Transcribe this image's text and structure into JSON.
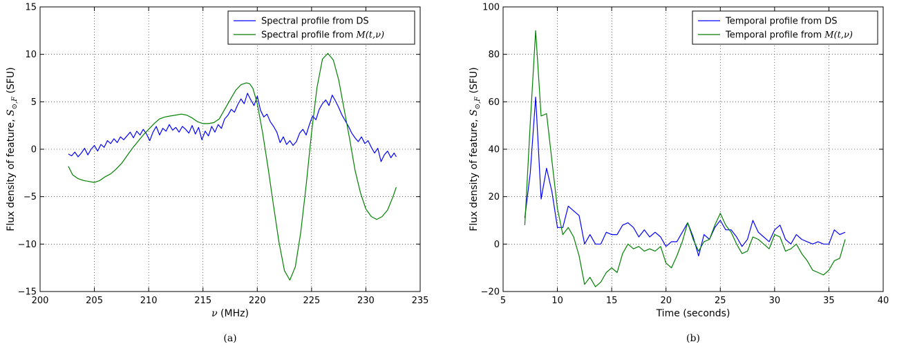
{
  "chart_data": [
    {
      "type": "line",
      "caption": "(a)",
      "xlabel_symbol": "ν",
      "xlabel_unit": "(MHz)",
      "ylabel_prefix": "Flux density of feature, ",
      "ylabel_symbol": "S",
      "ylabel_sub": "⊙,F",
      "ylabel_unit": " (SFU)",
      "xlim": [
        200,
        235
      ],
      "ylim": [
        -15,
        15
      ],
      "xticks": [
        200,
        205,
        210,
        215,
        220,
        225,
        230,
        235
      ],
      "yticks": [
        -15,
        -10,
        -5,
        0,
        5,
        10,
        15
      ],
      "grid": true,
      "legend_position": "top-right",
      "series": [
        {
          "name_prefix": "Spectral profile from DS",
          "name_math": "",
          "color": "#0000ff",
          "x": [
            202.6,
            202.9,
            203.2,
            203.5,
            203.8,
            204.1,
            204.4,
            204.7,
            205.0,
            205.3,
            205.6,
            205.9,
            206.2,
            206.5,
            206.8,
            207.1,
            207.4,
            207.7,
            208.0,
            208.3,
            208.6,
            208.9,
            209.2,
            209.5,
            209.8,
            210.1,
            210.4,
            210.7,
            211.0,
            211.3,
            211.6,
            211.9,
            212.2,
            212.5,
            212.8,
            213.1,
            213.4,
            213.7,
            214.0,
            214.3,
            214.6,
            214.9,
            215.2,
            215.5,
            215.8,
            216.1,
            216.4,
            216.7,
            217.0,
            217.3,
            217.6,
            217.9,
            218.2,
            218.5,
            218.8,
            219.1,
            219.4,
            219.7,
            220.0,
            220.3,
            220.6,
            220.9,
            221.2,
            221.5,
            221.8,
            222.1,
            222.4,
            222.7,
            223.0,
            223.3,
            223.6,
            223.9,
            224.2,
            224.5,
            224.8,
            225.1,
            225.4,
            225.7,
            226.0,
            226.3,
            226.6,
            226.9,
            227.2,
            227.5,
            227.8,
            228.1,
            228.4,
            228.7,
            229.0,
            229.3,
            229.6,
            229.9,
            230.2,
            230.5,
            230.8,
            231.1,
            231.4,
            231.7,
            232.0,
            232.3,
            232.6,
            232.8
          ],
          "y": [
            -0.5,
            -0.7,
            -0.3,
            -0.8,
            -0.4,
            0.1,
            -0.6,
            0.0,
            0.4,
            -0.2,
            0.5,
            0.2,
            0.9,
            0.6,
            1.1,
            0.7,
            1.3,
            1.0,
            1.4,
            1.8,
            1.2,
            1.9,
            1.5,
            2.1,
            1.6,
            0.9,
            1.8,
            2.4,
            1.5,
            2.2,
            1.9,
            2.6,
            2.0,
            2.3,
            1.8,
            2.4,
            2.1,
            1.7,
            2.5,
            1.6,
            2.3,
            1.0,
            1.9,
            1.4,
            2.4,
            1.8,
            2.6,
            2.2,
            3.2,
            3.6,
            4.2,
            3.9,
            4.7,
            5.3,
            4.8,
            5.9,
            5.2,
            4.6,
            5.6,
            4.1,
            3.4,
            3.7,
            2.9,
            2.4,
            1.8,
            0.7,
            1.3,
            0.5,
            0.9,
            0.4,
            0.8,
            1.7,
            2.1,
            1.5,
            2.6,
            3.5,
            3.1,
            4.2,
            4.8,
            5.2,
            4.6,
            5.7,
            5.1,
            4.4,
            3.6,
            3.0,
            2.4,
            1.7,
            1.2,
            0.8,
            1.3,
            0.6,
            0.9,
            0.2,
            -0.4,
            0.1,
            -1.3,
            -0.6,
            -0.2,
            -0.9,
            -0.4,
            -0.8
          ]
        },
        {
          "name_prefix": "Spectral profile from ",
          "name_math": "M(t,ν)",
          "color": "#008000",
          "x": [
            202.6,
            203.0,
            203.5,
            204.0,
            204.5,
            205.0,
            205.5,
            206.0,
            206.5,
            207.0,
            207.5,
            208.0,
            208.5,
            209.0,
            209.5,
            210.0,
            210.5,
            211.0,
            211.5,
            212.0,
            212.5,
            213.0,
            213.5,
            214.0,
            214.5,
            215.0,
            215.5,
            216.0,
            216.5,
            217.0,
            217.5,
            218.0,
            218.5,
            219.0,
            219.3,
            219.6,
            220.0,
            220.5,
            221.0,
            221.5,
            222.0,
            222.5,
            223.0,
            223.5,
            224.0,
            224.5,
            225.0,
            225.5,
            226.0,
            226.5,
            227.0,
            227.5,
            228.0,
            228.5,
            229.0,
            229.5,
            230.0,
            230.5,
            231.0,
            231.5,
            232.0,
            232.5,
            232.8
          ],
          "y": [
            -1.8,
            -2.7,
            -3.1,
            -3.3,
            -3.4,
            -3.5,
            -3.3,
            -2.9,
            -2.6,
            -2.1,
            -1.5,
            -0.7,
            0.1,
            0.8,
            1.5,
            2.1,
            2.7,
            3.2,
            3.4,
            3.5,
            3.6,
            3.7,
            3.6,
            3.3,
            2.9,
            2.7,
            2.7,
            2.8,
            3.2,
            4.2,
            5.2,
            6.2,
            6.8,
            7.0,
            6.9,
            6.4,
            4.8,
            1.7,
            -2.0,
            -6.0,
            -9.8,
            -12.8,
            -13.8,
            -12.4,
            -8.8,
            -3.8,
            1.8,
            6.5,
            9.5,
            10.1,
            9.4,
            7.3,
            4.2,
            1.1,
            -2.2,
            -4.6,
            -6.3,
            -7.1,
            -7.4,
            -7.1,
            -6.4,
            -5.0,
            -4.0
          ]
        }
      ]
    },
    {
      "type": "line",
      "caption": "(b)",
      "xlabel_text": "Time (seconds)",
      "ylabel_prefix": "Flux density of feature, ",
      "ylabel_symbol": "S",
      "ylabel_sub": "⊙,F",
      "ylabel_unit": " (SFU)",
      "xlim": [
        5,
        40
      ],
      "ylim": [
        -20,
        100
      ],
      "xticks": [
        5,
        10,
        15,
        20,
        25,
        30,
        35,
        40
      ],
      "yticks": [
        -20,
        0,
        20,
        40,
        60,
        80,
        100
      ],
      "grid": true,
      "legend_position": "top-right",
      "series": [
        {
          "name_prefix": "Temporal profile from DS",
          "name_math": "",
          "color": "#0000ff",
          "x": [
            7.0,
            7.5,
            8.0,
            8.5,
            9.0,
            9.5,
            10.0,
            10.5,
            11.0,
            11.5,
            12.0,
            12.5,
            13.0,
            13.5,
            14.0,
            14.5,
            15.0,
            15.5,
            16.0,
            16.5,
            17.0,
            17.5,
            18.0,
            18.5,
            19.0,
            19.5,
            20.0,
            20.5,
            21.0,
            21.5,
            22.0,
            22.5,
            23.0,
            23.5,
            24.0,
            24.5,
            25.0,
            25.5,
            26.0,
            26.5,
            27.0,
            27.5,
            28.0,
            28.5,
            29.0,
            29.5,
            30.0,
            30.5,
            31.0,
            31.5,
            32.0,
            32.5,
            33.0,
            33.5,
            34.0,
            34.5,
            35.0,
            35.5,
            36.0,
            36.5
          ],
          "y": [
            11,
            30,
            62,
            19,
            32,
            22,
            7,
            7,
            16,
            14,
            12,
            0,
            4,
            0,
            0,
            5,
            4,
            4,
            8,
            9,
            7,
            3,
            6,
            3,
            5,
            3,
            -1,
            1,
            1,
            5,
            9,
            3,
            -5,
            4,
            2,
            7,
            10,
            6,
            6,
            3,
            -1,
            2,
            10,
            5,
            3,
            1,
            6,
            8,
            2,
            0,
            4,
            2,
            1,
            0,
            1,
            0,
            0,
            6,
            4,
            5
          ]
        },
        {
          "name_prefix": "Temporal profile from ",
          "name_math": "M(t,ν)",
          "color": "#008000",
          "x": [
            7.0,
            7.5,
            8.0,
            8.5,
            9.0,
            9.5,
            10.0,
            10.5,
            11.0,
            11.5,
            12.0,
            12.5,
            13.0,
            13.5,
            14.0,
            14.5,
            15.0,
            15.5,
            16.0,
            16.5,
            17.0,
            17.5,
            18.0,
            18.5,
            19.0,
            19.5,
            20.0,
            20.5,
            21.0,
            21.5,
            22.0,
            22.5,
            23.0,
            23.5,
            24.0,
            24.5,
            25.0,
            25.5,
            26.0,
            26.5,
            27.0,
            27.5,
            28.0,
            28.5,
            29.0,
            29.5,
            30.0,
            30.5,
            31.0,
            31.5,
            32.0,
            32.5,
            33.0,
            33.5,
            34.0,
            34.5,
            35.0,
            35.5,
            36.0,
            36.5
          ],
          "y": [
            8,
            51,
            90,
            54,
            55,
            35,
            15,
            4,
            7,
            3,
            -5,
            -17,
            -14,
            -18,
            -16,
            -12,
            -10,
            -12,
            -4,
            0,
            -2,
            -1,
            -3,
            -2,
            -3,
            -1,
            -8,
            -10,
            -5,
            1,
            9,
            2,
            -3,
            1,
            2,
            8,
            13,
            8,
            5,
            0,
            -4,
            -3,
            3,
            2,
            0,
            -2,
            4,
            3,
            -3,
            -2,
            0,
            -4,
            -7,
            -11,
            -12,
            -13,
            -11,
            -7,
            -6,
            2
          ]
        }
      ]
    }
  ]
}
